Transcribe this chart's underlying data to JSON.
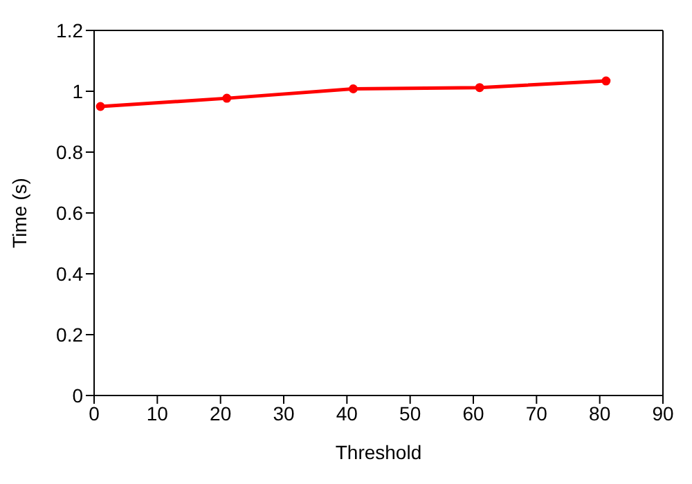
{
  "chart_data": {
    "type": "line",
    "xlabel": "Threshold",
    "ylabel": "Time (s)",
    "x": [
      1,
      21,
      41,
      61,
      81
    ],
    "series": [
      {
        "color": "#ff0000",
        "values": [
          0.95,
          0.977,
          1.008,
          1.012,
          1.034
        ]
      }
    ],
    "xlim": [
      0,
      90
    ],
    "xticks": [
      0,
      10,
      20,
      30,
      40,
      50,
      60,
      70,
      80,
      90
    ],
    "ylim": [
      0,
      1.2
    ],
    "yticks": [
      0,
      0.2,
      0.4,
      0.6,
      0.8,
      1,
      1.2
    ],
    "grid": false,
    "legend": false,
    "marker": "circle",
    "line_style": "solid"
  }
}
